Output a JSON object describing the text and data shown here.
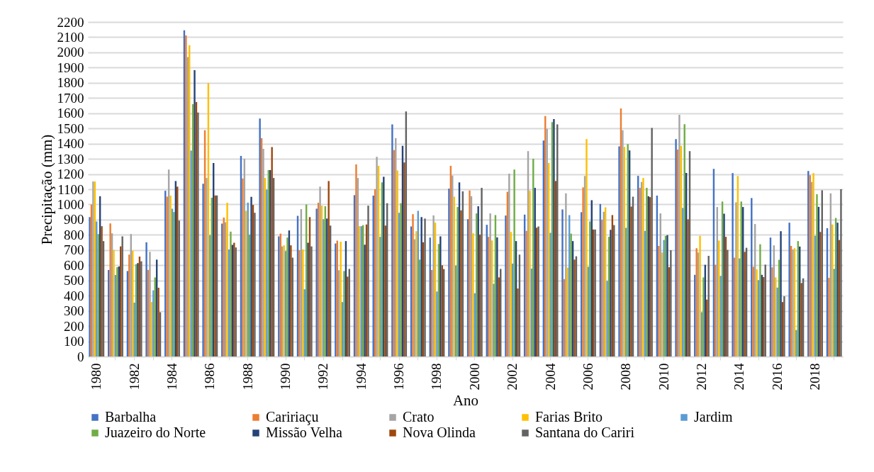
{
  "chart_data": {
    "type": "bar",
    "xlabel": "Ano",
    "ylabel": "Precipitação (mm)",
    "categories": [
      "1980",
      null,
      "1982",
      null,
      "1984",
      null,
      "1986",
      null,
      "1988",
      null,
      "1990",
      null,
      "1992",
      null,
      "1994",
      null,
      "1996",
      null,
      "1998",
      null,
      "2000",
      null,
      "2002",
      null,
      "2004",
      null,
      "2006",
      null,
      "2008",
      null,
      "2010",
      null,
      "2012",
      null,
      "2014",
      null,
      "2016",
      null,
      "2018",
      null
    ],
    "ylim": [
      0,
      2200
    ],
    "yticks": [
      0,
      100,
      200,
      300,
      400,
      500,
      600,
      700,
      800,
      900,
      1000,
      1100,
      1200,
      1300,
      1400,
      1500,
      1600,
      1700,
      1800,
      1900,
      2000,
      2100,
      2200
    ],
    "grid": "y",
    "legend": "bottom",
    "series": [
      {
        "name": "Barbalha",
        "color": "#4472c4",
        "values": [
          917,
          569,
          562,
          751,
          1090,
          2145,
          1136,
          874,
          1319,
          1565,
          790,
          925,
          972,
          743,
          1061,
          1058,
          1526,
          855,
          782,
          1104,
          903,
          866,
          927,
          933,
          1421,
          967,
          949,
          1003,
          1382,
          1188,
          1058,
          1430,
          537,
          1234,
          1206,
          1042,
          782,
          880,
          1220,
          844
        ]
      },
      {
        "name": "Caririaçu",
        "color": "#ed7d31",
        "values": [
          1000,
          875,
          670,
          569,
          1051,
          2111,
          1488,
          914,
          1171,
          1436,
          808,
          699,
          1011,
          762,
          1263,
          1100,
          1358,
          936,
          569,
          1254,
          1092,
          787,
          1083,
          826,
          1581,
          509,
          1112,
          899,
          1631,
          1109,
          727,
          1361,
          712,
          603,
          650,
          590,
          586,
          727,
          1192,
          517
        ]
      },
      {
        "name": "Crato",
        "color": "#a5a5a5",
        "values": [
          1151,
          810,
          805,
          688,
          1229,
          1969,
          1174,
          883,
          1301,
          1366,
          724,
          969,
          1117,
          567,
          1174,
          1313,
          1436,
          771,
          928,
          1190,
          1054,
          941,
          1202,
          1350,
          1497,
          1073,
          1187,
          952,
          1488,
          1148,
          941,
          1589,
          684,
          983,
          1014,
          871,
          731,
          704,
          1148,
          1073
        ]
      },
      {
        "name": "Farias Brito",
        "color": "#ffc000",
        "values": [
          1151,
          701,
          696,
          358,
          1058,
          2047,
          1799,
          1011,
          958,
          1174,
          731,
          704,
          992,
          755,
          857,
          1254,
          1223,
          824,
          880,
          1051,
          810,
          763,
          819,
          1090,
          1273,
          584,
          1430,
          981,
          1379,
          1174,
          684,
          1386,
          794,
          762,
          1187,
          573,
          520,
          712,
          1206,
          868
        ]
      },
      {
        "name": "Jardim",
        "color": "#5b9bd5",
        "values": [
          888,
          536,
          354,
          435,
          972,
          1354,
          798,
          704,
          1012,
          1098,
          693,
          442,
          903,
          358,
          857,
          787,
          945,
          958,
          427,
          598,
          416,
          478,
          611,
          578,
          813,
          930,
          590,
          497,
          846,
          826,
          766,
          977,
          291,
          530,
          645,
          502,
          453,
          174,
          794,
          576
        ]
      },
      {
        "name": "Juazeiro do Norte",
        "color": "#70ad47",
        "values": [
          805,
          587,
          607,
          520,
          950,
          1659,
          1044,
          821,
          801,
          1226,
          782,
          1000,
          988,
          562,
          864,
          1145,
          1008,
          637,
          740,
          983,
          941,
          930,
          1229,
          1301,
          1542,
          808,
          888,
          787,
          1397,
          1109,
          793,
          1528,
          520,
          1019,
          1019,
          738,
          636,
          759,
          1067,
          911
        ]
      },
      {
        "name": "Missão Velha",
        "color": "#264478",
        "values": [
          1054,
          592,
          614,
          637,
          1154,
          1883,
          1273,
          734,
          1050,
          1226,
          829,
          748,
          907,
          759,
          735,
          1182,
          1386,
          917,
          790,
          1145,
          988,
          783,
          759,
          1109,
          1561,
          759,
          1028,
          833,
          1355,
          1054,
          798,
          1207,
          603,
          939,
          983,
          537,
          824,
          723,
          984,
          880
        ]
      },
      {
        "name": "Nova Olinda",
        "color": "#9e480e",
        "values": [
          857,
          724,
          657,
          452,
          1117,
          1673,
          1059,
          748,
          997,
          1377,
          731,
          917,
          1154,
          525,
          868,
          861,
          1276,
          751,
          600,
          961,
          801,
          520,
          447,
          847,
          1154,
          637,
          835,
          930,
          986,
          1048,
          587,
          902,
          374,
          787,
          688,
          522,
          358,
          483,
          819,
          766
        ]
      },
      {
        "name": "Santana do Cariri",
        "color": "#636363",
        "values": [
          759,
          790,
          626,
          291,
          894,
          1604,
          1059,
          717,
          945,
          1174,
          650,
          724,
          861,
          576,
          992,
          1008,
          1611,
          907,
          575,
          1086,
          1109,
          576,
          670,
          855,
          1526,
          659,
          835,
          864,
          1051,
          1503,
          699,
          1350,
          662,
          701,
          715,
          604,
          396,
          514,
          1093,
          1100
        ]
      }
    ]
  }
}
